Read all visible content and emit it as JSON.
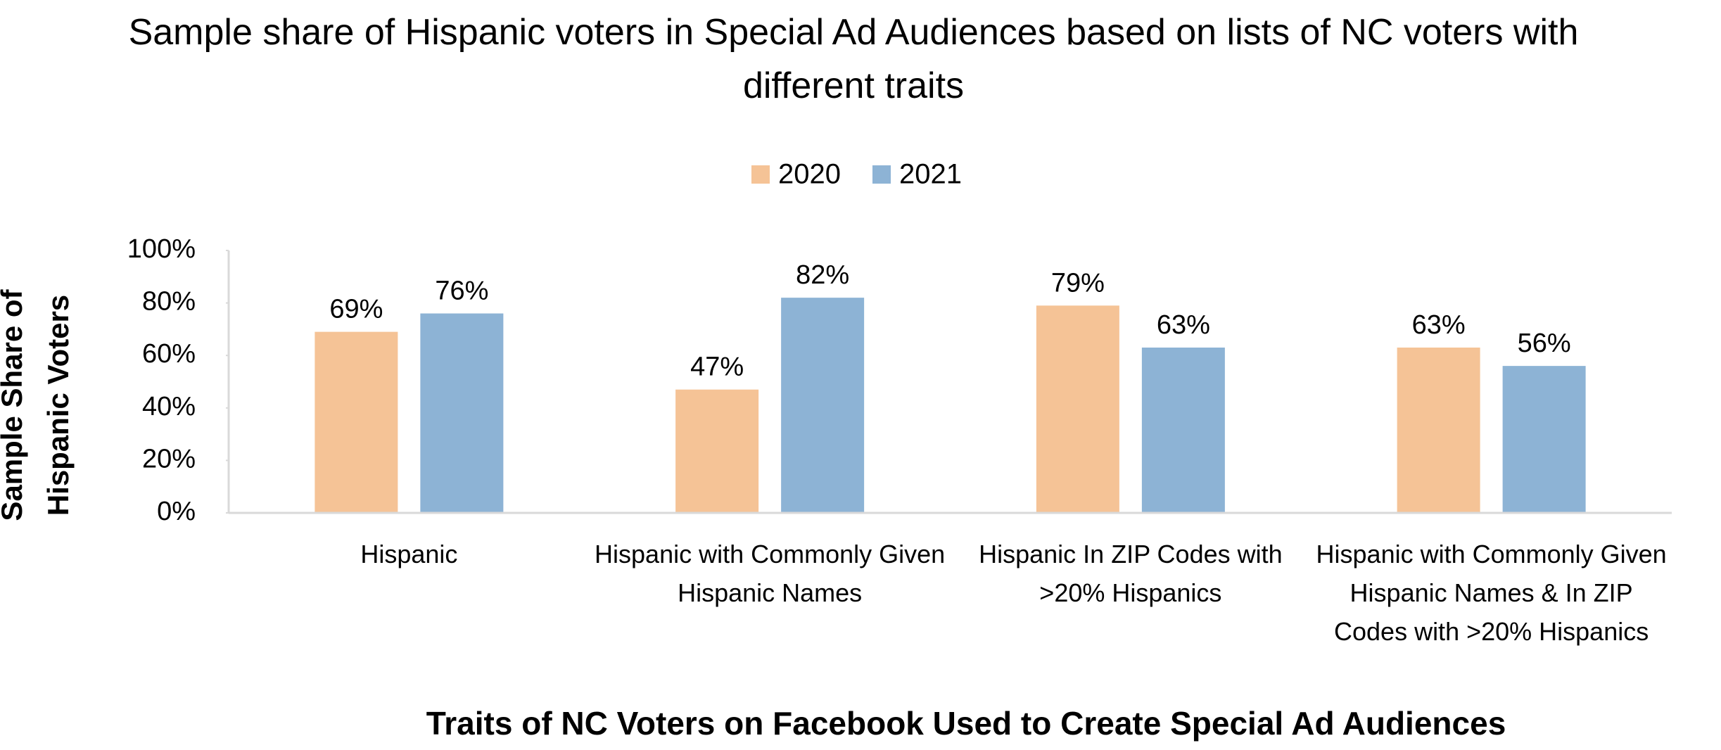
{
  "chart_data": {
    "type": "bar",
    "title": "Sample share of Hispanic voters in Special Ad Audiences based on lists of NC voters with different traits",
    "x_label": "Traits of NC Voters on Facebook Used to Create Special Ad Audiences",
    "y_label": "Sample Share of Hispanic Voters",
    "categories": [
      "Hispanic",
      "Hispanic with Commonly Given Hispanic Names",
      "Hispanic In ZIP Codes with >20% Hispanics",
      "Hispanic with Commonly Given Hispanic Names & In ZIP Codes with >20% Hispanics"
    ],
    "series": [
      {
        "name": "2020",
        "color": "#f5c396",
        "values": [
          69,
          47,
          79,
          63
        ],
        "value_labels": [
          "69%",
          "47%",
          "79%",
          "63%"
        ]
      },
      {
        "name": "2021",
        "color": "#8db3d5",
        "values": [
          76,
          82,
          63,
          56
        ],
        "value_labels": [
          "76%",
          "82%",
          "63%",
          "56%"
        ]
      }
    ],
    "ylim": [
      0,
      100
    ],
    "yticks": [
      {
        "value": 0,
        "label": "0%"
      },
      {
        "value": 20,
        "label": "20%"
      },
      {
        "value": 40,
        "label": "40%"
      },
      {
        "value": 60,
        "label": "60%"
      },
      {
        "value": 80,
        "label": "80%"
      },
      {
        "value": 100,
        "label": "100%"
      }
    ],
    "legend": "top",
    "grid": false
  }
}
